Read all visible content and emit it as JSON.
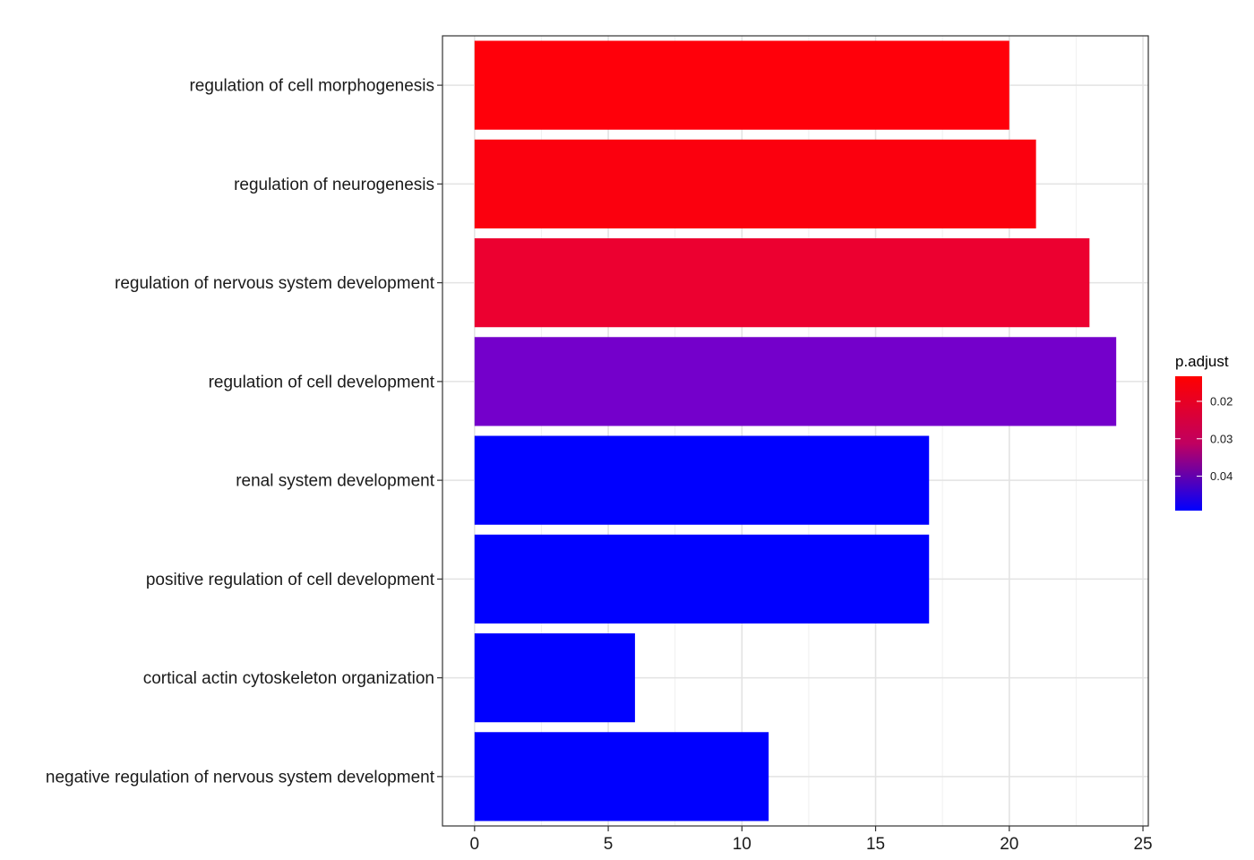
{
  "chart_data": {
    "type": "bar",
    "orientation": "horizontal",
    "categories": [
      "regulation of cell morphogenesis",
      "regulation of neurogenesis",
      "regulation of nervous system development",
      "regulation of cell development",
      "renal system development",
      "positive regulation of cell development",
      "cortical actin cytoskeleton organization",
      "negative regulation of nervous system development"
    ],
    "values": [
      20,
      21,
      23,
      24,
      17,
      17,
      6,
      11
    ],
    "bar_colors": [
      "#FF000A",
      "#FB000E",
      "#EC0030",
      "#7400CB",
      "#0000FF",
      "#0000FF",
      "#0000FF",
      "#0000FF"
    ],
    "xlim": [
      -1.2,
      25.2
    ],
    "x_ticks": [
      "0",
      "5",
      "10",
      "15",
      "20",
      "25"
    ],
    "x_tick_values": [
      0,
      5,
      10,
      15,
      20,
      25
    ],
    "grid": true,
    "xlabel": "",
    "ylabel": "",
    "legend": {
      "title": "p.adjust",
      "placement": "right",
      "ticks": [
        "0.02",
        "0.03",
        "0.04"
      ],
      "tick_values": [
        0.02,
        0.03,
        0.04
      ],
      "range": [
        0.0133,
        0.0492
      ],
      "color_low_pvalue": "#FF0000",
      "color_high_pvalue": "#0000FF"
    }
  }
}
